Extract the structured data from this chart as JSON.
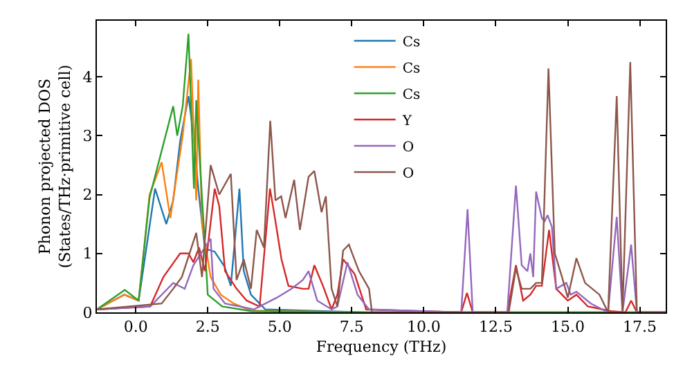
{
  "chart_data": {
    "type": "line",
    "xlabel": "Frequency (THz)",
    "ylabel": "Phonon projected DOS\n(States/THz·primitive cell)",
    "xlim": [
      -1.35,
      18.4
    ],
    "ylim": [
      0,
      4.95
    ],
    "xticks": [
      {
        "value": 0,
        "label": "0.0"
      },
      2.5,
      {
        "value": 5,
        "label": "5.0"
      },
      7.5,
      {
        "value": 10,
        "label": "10.0"
      },
      12.5,
      {
        "value": 15,
        "label": "15.0"
      },
      17.5
    ],
    "yticks": [
      0,
      1,
      2,
      3,
      4
    ],
    "grid": false,
    "legend": "top",
    "marker": "none",
    "line_style": "solid",
    "series": [
      {
        "name": "Cs",
        "color": "#1f77b4",
        "x": [
          -1.35,
          -0.4,
          0.1,
          0.67,
          1.06,
          1.3,
          1.54,
          1.83,
          2.02,
          2.17,
          2.4,
          2.74,
          3.08,
          3.3,
          3.6,
          3.75,
          4.0,
          4.5,
          8,
          18.4
        ],
        "values": [
          0.05,
          0.3,
          0.2,
          2.1,
          1.5,
          1.9,
          2.9,
          3.67,
          2.96,
          2.1,
          1.08,
          1.03,
          0.78,
          0.45,
          2.1,
          0.7,
          0.3,
          0.05,
          0,
          0
        ]
      },
      {
        "name": "Cs",
        "color": "#ff7f0e",
        "x": [
          -1.35,
          -0.4,
          0.1,
          0.48,
          0.9,
          1.2,
          1.63,
          1.92,
          2.1,
          2.17,
          2.3,
          2.6,
          2.95,
          3.4,
          4.0,
          8,
          18.4
        ],
        "values": [
          0.05,
          0.3,
          0.2,
          2.0,
          2.55,
          1.6,
          3.0,
          4.3,
          1.9,
          3.95,
          1.5,
          0.6,
          0.3,
          0.15,
          0.03,
          0,
          0
        ]
      },
      {
        "name": "Cs",
        "color": "#2ca02c",
        "x": [
          -1.35,
          -0.38,
          0.1,
          0.48,
          1.3,
          1.44,
          1.63,
          1.83,
          1.92,
          2.02,
          2.1,
          2.5,
          3.0,
          4.0,
          8,
          18.4
        ],
        "values": [
          0.05,
          0.38,
          0.2,
          1.95,
          3.5,
          3.0,
          3.5,
          4.73,
          3.5,
          2.1,
          3.6,
          0.3,
          0.1,
          0.02,
          0,
          0
        ]
      },
      {
        "name": "Y",
        "color": "#d62728",
        "x": [
          -1.35,
          0.5,
          0.96,
          1.54,
          1.83,
          2.0,
          2.2,
          2.4,
          2.74,
          2.9,
          3.1,
          3.5,
          3.85,
          4.3,
          4.66,
          4.8,
          5.06,
          5.3,
          5.8,
          6.0,
          6.2,
          6.5,
          6.8,
          7.0,
          7.2,
          7.6,
          8.0,
          11.3,
          11.5,
          11.7,
          12.9,
          13.2,
          13.45,
          13.7,
          13.9,
          14.1,
          14.35,
          14.6,
          15.0,
          15.3,
          15.7,
          16.5,
          17.0,
          17.2,
          17.4,
          18.4
        ],
        "values": [
          0.05,
          0.1,
          0.6,
          1.0,
          1.0,
          0.85,
          1.1,
          0.7,
          2.1,
          1.8,
          0.7,
          0.4,
          0.2,
          0.1,
          2.1,
          1.7,
          0.9,
          0.45,
          0.4,
          0.4,
          0.8,
          0.45,
          0.05,
          0.3,
          0.9,
          0.65,
          0.05,
          0,
          0.33,
          0,
          0,
          0.8,
          0.2,
          0.3,
          0.45,
          0.45,
          1.4,
          0.4,
          0.2,
          0.3,
          0.1,
          0.02,
          0,
          0.2,
          0,
          0
        ]
      },
      {
        "name": "O",
        "color": "#9467bd",
        "x": [
          -1.35,
          0.5,
          1.3,
          1.7,
          2.0,
          2.6,
          2.7,
          3.1,
          4.1,
          4.9,
          5.4,
          5.8,
          6.0,
          6.3,
          6.8,
          7.0,
          7.35,
          7.7,
          8.1,
          11.3,
          11.52,
          11.7,
          12.9,
          13.2,
          13.4,
          13.6,
          13.7,
          13.8,
          13.9,
          14.1,
          14.2,
          14.3,
          14.45,
          14.6,
          14.95,
          15.1,
          15.3,
          15.8,
          16.4,
          16.7,
          16.9,
          17.2,
          17.4,
          18.4
        ],
        "values": [
          0.05,
          0.1,
          0.5,
          0.4,
          0.8,
          1.25,
          0.4,
          0.15,
          0.05,
          0.25,
          0.4,
          0.55,
          0.7,
          0.2,
          0.05,
          0.1,
          0.85,
          0.3,
          0.05,
          0,
          1.75,
          0,
          0,
          2.15,
          0.8,
          0.7,
          1.0,
          0.6,
          2.05,
          1.6,
          1.55,
          1.65,
          1.45,
          0.4,
          0.5,
          0.3,
          0.35,
          0.15,
          0,
          1.62,
          0,
          1.15,
          0,
          0
        ]
      },
      {
        "name": "O",
        "color": "#8c564b",
        "x": [
          -1.35,
          0.9,
          1.3,
          1.6,
          2.1,
          2.3,
          2.6,
          2.9,
          3.3,
          3.5,
          3.75,
          4.0,
          4.2,
          4.45,
          4.67,
          4.85,
          5.05,
          5.2,
          5.5,
          5.7,
          6.0,
          6.2,
          6.45,
          6.6,
          6.8,
          7.0,
          7.2,
          7.4,
          7.75,
          8.1,
          8.2,
          12.95,
          13.2,
          13.4,
          13.7,
          13.9,
          14.1,
          14.33,
          14.55,
          14.8,
          15.0,
          15.3,
          15.6,
          16.1,
          16.4,
          16.7,
          16.9,
          17.17,
          17.4,
          18.4
        ],
        "values": [
          0.05,
          0.15,
          0.4,
          0.6,
          1.35,
          0.6,
          2.5,
          2.0,
          2.35,
          0.55,
          0.9,
          0.4,
          1.4,
          1.1,
          3.25,
          1.9,
          1.97,
          1.6,
          2.25,
          1.4,
          2.3,
          2.4,
          1.7,
          1.97,
          0.4,
          0.1,
          1.05,
          1.15,
          0.7,
          0.4,
          0,
          0,
          0.75,
          0.4,
          0.4,
          0.5,
          0.5,
          4.14,
          1.0,
          0.6,
          0.25,
          0.92,
          0.5,
          0.3,
          0,
          3.67,
          0,
          4.25,
          0,
          0
        ]
      }
    ]
  }
}
